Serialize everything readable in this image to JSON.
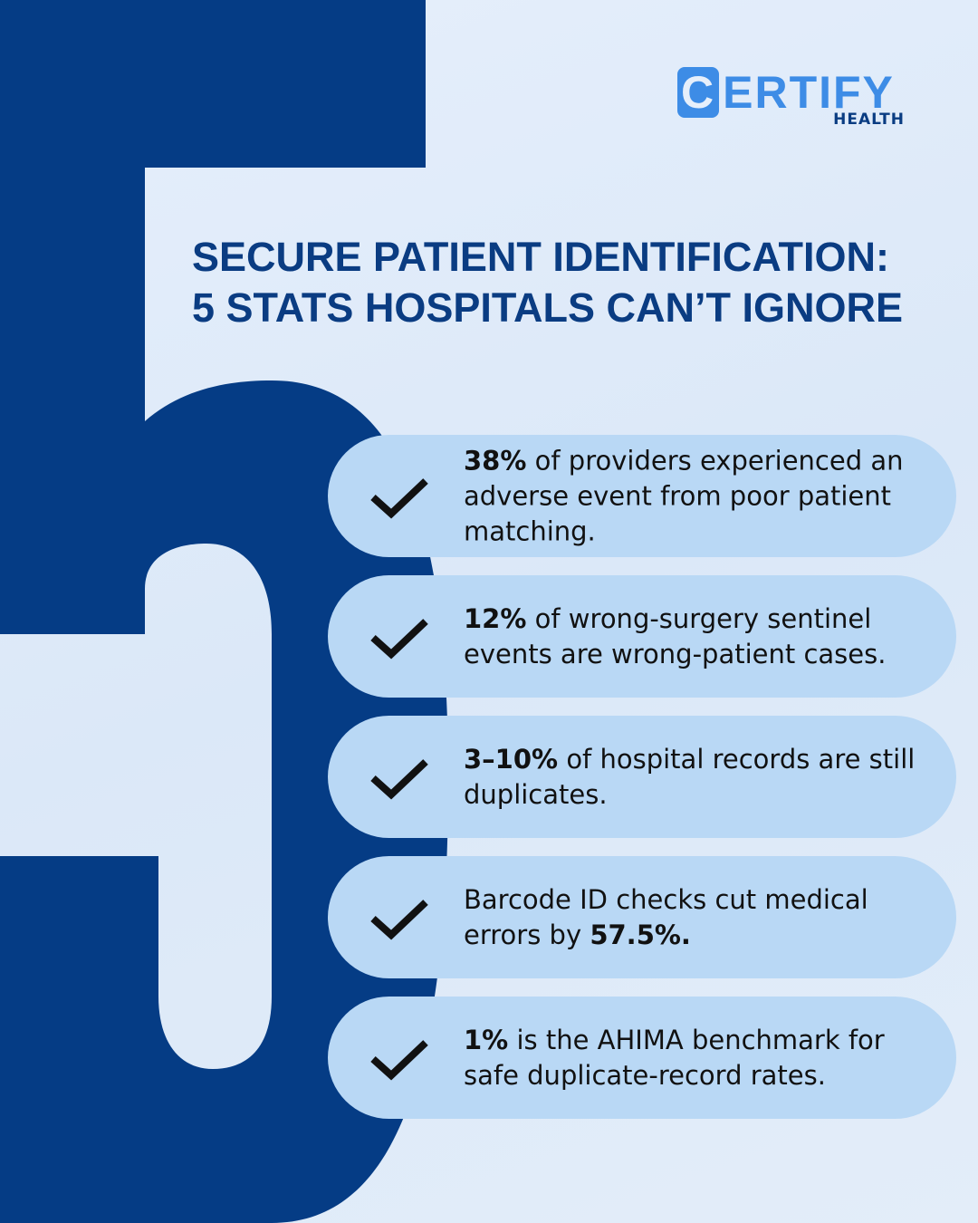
{
  "logo": {
    "name": "CERTIFY",
    "subtitle": "HEALTH"
  },
  "title": [
    "SECURE PATIENT IDENTIFICATION:",
    "5 STATS HOSPITALS CAN’T IGNORE"
  ],
  "items": [
    {
      "parts": [
        {
          "text": "38%",
          "bold": true
        },
        {
          "text": "of providers experienced an adverse event from poor patient matching.",
          "bold": false
        }
      ]
    },
    {
      "parts": [
        {
          "text": "12%",
          "bold": true
        },
        {
          "text": "of wrong-surgery sentinel events are wrong-patient cases.",
          "bold": false
        }
      ]
    },
    {
      "parts": [
        {
          "text": "3–10%",
          "bold": true
        },
        {
          "text": "of hospital records are still duplicates.",
          "bold": false
        }
      ]
    },
    {
      "parts": [
        {
          "text": "Barcode ID checks cut medical errors by",
          "bold": false
        },
        {
          "text": "57.5%.",
          "bold": true
        }
      ]
    },
    {
      "parts": [
        {
          "text": "1%",
          "bold": true
        },
        {
          "text": "is the AHIMA benchmark for safe duplicate-record rates.",
          "bold": false
        }
      ]
    }
  ]
}
